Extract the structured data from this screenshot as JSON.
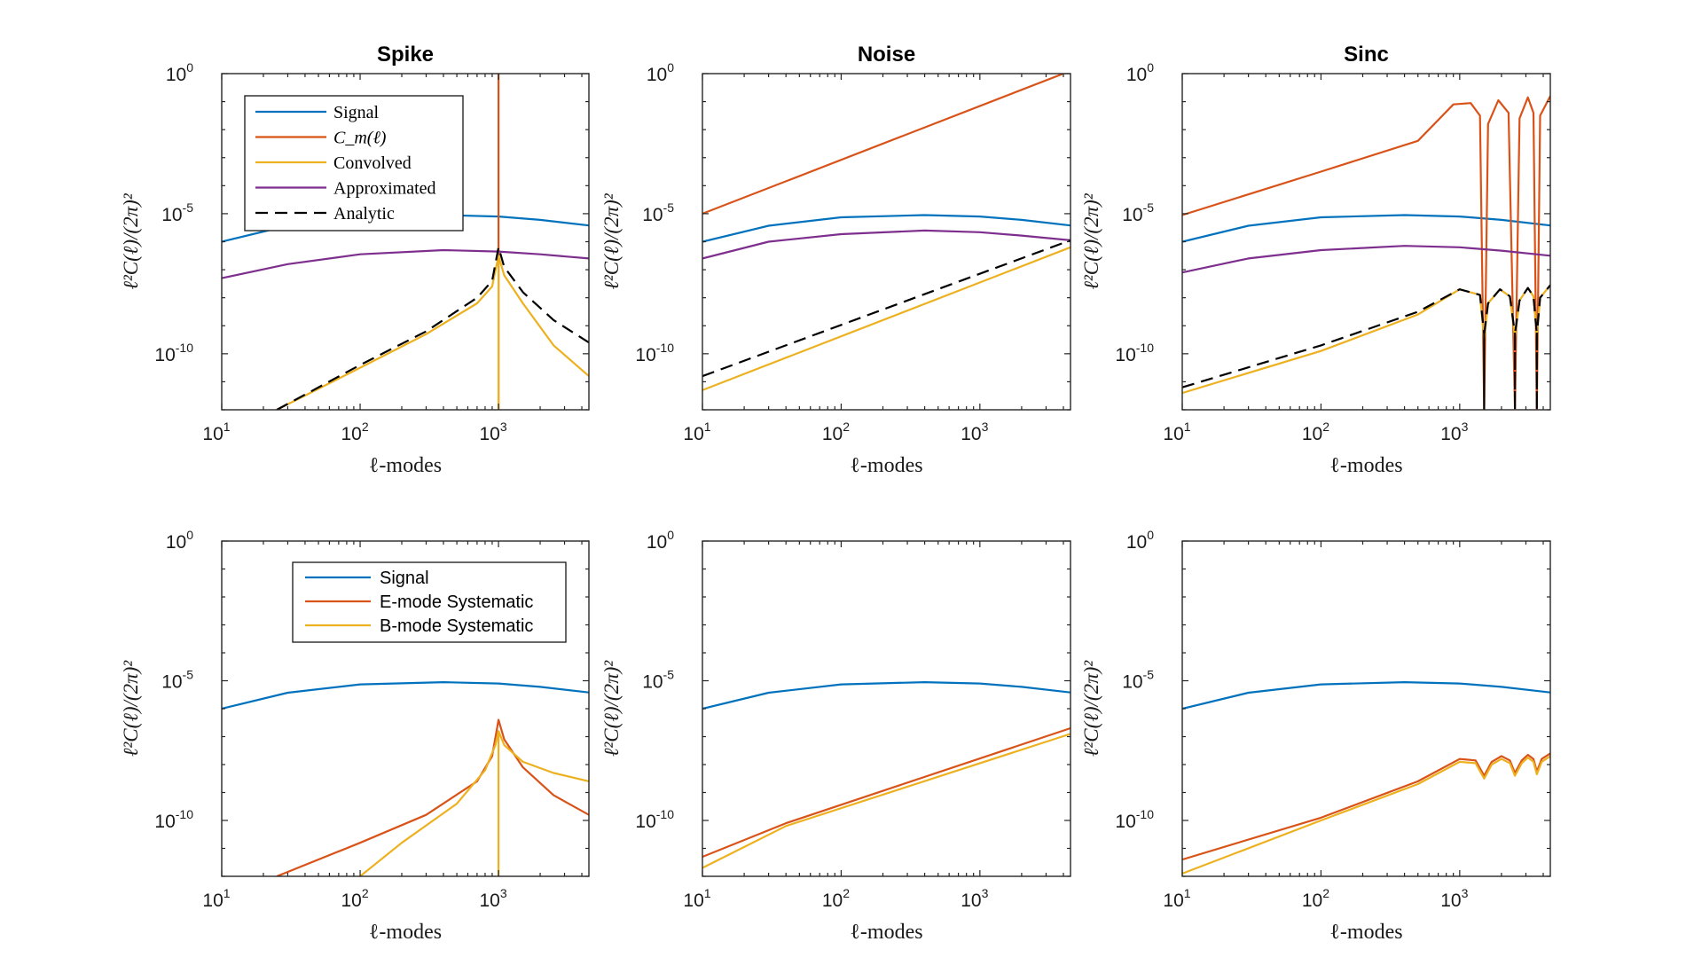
{
  "colors": {
    "signal": "#0072BD",
    "orange": "#D95319",
    "yellow": "#EDB120",
    "purple": "#7E2F8E",
    "black": "#000000"
  },
  "chart_data": [
    {
      "type": "line",
      "id": "top-spike",
      "title": "Spike",
      "xlabel": "ℓ-modes",
      "ylabel": "ℓ²C(ℓ)/(2π)²",
      "xscale": "log",
      "yscale": "log",
      "xlim": [
        10,
        4500
      ],
      "ylim": [
        1e-12,
        1
      ],
      "xticks": [
        {
          "base": "10",
          "exp": "1"
        },
        {
          "base": "10",
          "exp": "2"
        },
        {
          "base": "10",
          "exp": "3"
        }
      ],
      "yticks": [
        {
          "base": "10",
          "exp": "0",
          "value": 0
        },
        {
          "base": "10",
          "exp": "-5",
          "value": -5
        },
        {
          "base": "10",
          "exp": "-10",
          "value": -10
        }
      ],
      "legend": {
        "position": "top-left",
        "font": "serif",
        "entries": [
          {
            "text": "Signal",
            "color": "#0072BD"
          },
          {
            "text": "C_m(ℓ)",
            "color": "#D95319",
            "math": true
          },
          {
            "text": "Convolved",
            "color": "#EDB120"
          },
          {
            "text": "Approximated",
            "color": "#7E2F8E"
          },
          {
            "text": "Analytic",
            "color": "#000000",
            "dash": true
          }
        ]
      },
      "series": [
        {
          "name": "Signal",
          "color": "#0072BD",
          "x": [
            10,
            30,
            100,
            400,
            1000,
            2000,
            4500
          ],
          "y": [
            -6.0,
            -5.43,
            -5.13,
            -5.05,
            -5.1,
            -5.22,
            -5.42
          ]
        },
        {
          "name": "C_m(ℓ)",
          "color": "#D95319",
          "x": [
            1000,
            1000
          ],
          "y": [
            -12,
            0
          ]
        },
        {
          "name": "Convolved",
          "color": "#EDB120",
          "x": [
            25,
            100,
            300,
            700,
            900,
            1000,
            1000,
            1000,
            1100,
            1500,
            2500,
            4500
          ],
          "y": [
            -12.0,
            -10.5,
            -9.3,
            -8.2,
            -7.6,
            -6.5,
            -12,
            -6.5,
            -7.2,
            -8.2,
            -9.7,
            -10.8
          ]
        },
        {
          "name": "Approximated",
          "color": "#7E2F8E",
          "x": [
            10,
            30,
            100,
            400,
            1000,
            2000,
            4500
          ],
          "y": [
            -7.3,
            -6.8,
            -6.45,
            -6.3,
            -6.35,
            -6.45,
            -6.6
          ]
        },
        {
          "name": "Analytic",
          "color": "#000000",
          "dash": true,
          "x": [
            25,
            100,
            300,
            700,
            900,
            1000,
            1100,
            1500,
            2500,
            4500
          ],
          "y": [
            -12.0,
            -10.4,
            -9.2,
            -8.0,
            -7.4,
            -6.2,
            -6.9,
            -7.8,
            -8.8,
            -9.6
          ]
        }
      ]
    },
    {
      "type": "line",
      "id": "top-noise",
      "title": "Noise",
      "xlabel": "ℓ-modes",
      "ylabel": "ℓ²C(ℓ)/(2π)²",
      "xscale": "log",
      "yscale": "log",
      "xlim": [
        10,
        4500
      ],
      "ylim": [
        1e-12,
        1
      ],
      "xticks": [
        {
          "base": "10",
          "exp": "1"
        },
        {
          "base": "10",
          "exp": "2"
        },
        {
          "base": "10",
          "exp": "3"
        }
      ],
      "yticks": [
        {
          "base": "10",
          "exp": "0",
          "value": 0
        },
        {
          "base": "10",
          "exp": "-5",
          "value": -5
        },
        {
          "base": "10",
          "exp": "-10",
          "value": -10
        }
      ],
      "series": [
        {
          "name": "Signal",
          "color": "#0072BD",
          "x": [
            10,
            30,
            100,
            400,
            1000,
            2000,
            4500
          ],
          "y": [
            -6.0,
            -5.43,
            -5.13,
            -5.05,
            -5.1,
            -5.22,
            -5.42
          ]
        },
        {
          "name": "C_m(ℓ)",
          "color": "#D95319",
          "x": [
            10,
            4000
          ],
          "y": [
            -5.0,
            0
          ]
        },
        {
          "name": "Approximated",
          "color": "#7E2F8E",
          "x": [
            10,
            30,
            100,
            400,
            1000,
            2000,
            4500
          ],
          "y": [
            -6.6,
            -6.0,
            -5.73,
            -5.6,
            -5.66,
            -5.78,
            -5.95
          ]
        },
        {
          "name": "Analytic",
          "color": "#000000",
          "dash": true,
          "x": [
            10,
            4500
          ],
          "y": [
            -10.8,
            -5.95
          ]
        },
        {
          "name": "Convolved",
          "color": "#EDB120",
          "x": [
            10,
            4500
          ],
          "y": [
            -11.3,
            -6.2
          ]
        }
      ]
    },
    {
      "type": "line",
      "id": "top-sinc",
      "title": "Sinc",
      "xlabel": "ℓ-modes",
      "ylabel": "ℓ²C(ℓ)/(2π)²",
      "xscale": "log",
      "yscale": "log",
      "xlim": [
        10,
        4500
      ],
      "ylim": [
        1e-12,
        1
      ],
      "xticks": [
        {
          "base": "10",
          "exp": "1"
        },
        {
          "base": "10",
          "exp": "2"
        },
        {
          "base": "10",
          "exp": "3"
        }
      ],
      "yticks": [
        {
          "base": "10",
          "exp": "0",
          "value": 0
        },
        {
          "base": "10",
          "exp": "-5",
          "value": -5
        },
        {
          "base": "10",
          "exp": "-10",
          "value": -10
        }
      ],
      "series": [
        {
          "name": "Signal",
          "color": "#0072BD",
          "x": [
            10,
            30,
            100,
            400,
            1000,
            2000,
            4500
          ],
          "y": [
            -6.0,
            -5.43,
            -5.13,
            -5.05,
            -5.1,
            -5.22,
            -5.42
          ]
        },
        {
          "name": "C_m(ℓ)",
          "color": "#D95319",
          "x": [
            10,
            100,
            500,
            900,
            1200,
            1400,
            1500,
            1600,
            1900,
            2250,
            2500,
            2700,
            3100,
            3400,
            3600,
            3800,
            4500
          ],
          "y": [
            -5.05,
            -3.5,
            -2.4,
            -1.1,
            -1.05,
            -1.5,
            -12,
            -1.8,
            -0.95,
            -1.4,
            -12,
            -1.6,
            -0.85,
            -1.4,
            -12,
            -1.5,
            -0.8
          ]
        },
        {
          "name": "Approximated",
          "color": "#7E2F8E",
          "x": [
            10,
            30,
            100,
            400,
            1000,
            2000,
            4500
          ],
          "y": [
            -7.1,
            -6.6,
            -6.3,
            -6.15,
            -6.2,
            -6.32,
            -6.5
          ]
        },
        {
          "name": "Convolved",
          "color": "#EDB120",
          "x": [
            10,
            100,
            500,
            1000,
            1400,
            1500,
            1600,
            1950,
            2300,
            2500,
            2700,
            3100,
            3400,
            3600,
            3800,
            4500
          ],
          "y": [
            -11.4,
            -9.9,
            -8.6,
            -7.7,
            -7.9,
            -9.5,
            -8.2,
            -7.7,
            -7.95,
            -9.4,
            -8.1,
            -7.65,
            -7.95,
            -9.4,
            -8.0,
            -7.55
          ]
        },
        {
          "name": "Analytic",
          "color": "#000000",
          "dash": true,
          "x": [
            10,
            100,
            500,
            1000,
            1400,
            1500,
            1500,
            1500,
            1600,
            1950,
            2300,
            2500,
            2500,
            2500,
            2700,
            3100,
            3400,
            3600,
            3600,
            3600,
            3800,
            4500
          ],
          "y": [
            -11.2,
            -9.7,
            -8.5,
            -7.7,
            -7.9,
            -9.3,
            -12,
            -9.3,
            -8.2,
            -7.7,
            -7.95,
            -9.3,
            -12,
            -9.3,
            -8.1,
            -7.65,
            -7.95,
            -9.3,
            -12,
            -9.3,
            -8.0,
            -7.55
          ]
        }
      ]
    },
    {
      "type": "line",
      "id": "bottom-spike",
      "title": "",
      "xlabel": "ℓ-modes",
      "ylabel": "ℓ²C(ℓ)/(2π)²",
      "xscale": "log",
      "yscale": "log",
      "xlim": [
        10,
        4500
      ],
      "ylim": [
        1e-12,
        1
      ],
      "xticks": [
        {
          "base": "10",
          "exp": "1"
        },
        {
          "base": "10",
          "exp": "2"
        },
        {
          "base": "10",
          "exp": "3"
        }
      ],
      "yticks": [
        {
          "base": "10",
          "exp": "0",
          "value": 0
        },
        {
          "base": "10",
          "exp": "-5",
          "value": -5
        },
        {
          "base": "10",
          "exp": "-10",
          "value": -10
        }
      ],
      "legend": {
        "position": "top-center",
        "font": "sans",
        "entries": [
          {
            "text": "Signal",
            "color": "#0072BD"
          },
          {
            "text": "E-mode Systematic",
            "color": "#D95319"
          },
          {
            "text": "B-mode Systematic",
            "color": "#EDB120"
          }
        ]
      },
      "series": [
        {
          "name": "Signal",
          "color": "#0072BD",
          "x": [
            10,
            30,
            100,
            400,
            1000,
            2000,
            4500
          ],
          "y": [
            -6.0,
            -5.43,
            -5.13,
            -5.05,
            -5.1,
            -5.22,
            -5.42
          ]
        },
        {
          "name": "E-mode Systematic",
          "color": "#D95319",
          "x": [
            25,
            100,
            300,
            700,
            900,
            1000,
            1100,
            1500,
            2500,
            4500
          ],
          "y": [
            -12.0,
            -10.8,
            -9.8,
            -8.6,
            -7.7,
            -6.4,
            -7.1,
            -8.1,
            -9.1,
            -9.8
          ]
        },
        {
          "name": "B-mode Systematic",
          "color": "#EDB120",
          "x": [
            100,
            200,
            500,
            800,
            950,
            1000,
            1000,
            1000,
            1100,
            1500,
            2500,
            4500
          ],
          "y": [
            -12.0,
            -10.8,
            -9.4,
            -8.2,
            -7.3,
            -6.8,
            -12,
            -6.8,
            -7.3,
            -7.9,
            -8.3,
            -8.6
          ]
        }
      ]
    },
    {
      "type": "line",
      "id": "bottom-noise",
      "title": "",
      "xlabel": "ℓ-modes",
      "ylabel": "ℓ²C(ℓ)/(2π)²",
      "xscale": "log",
      "yscale": "log",
      "xlim": [
        10,
        4500
      ],
      "ylim": [
        1e-12,
        1
      ],
      "xticks": [
        {
          "base": "10",
          "exp": "1"
        },
        {
          "base": "10",
          "exp": "2"
        },
        {
          "base": "10",
          "exp": "3"
        }
      ],
      "yticks": [
        {
          "base": "10",
          "exp": "0",
          "value": 0
        },
        {
          "base": "10",
          "exp": "-5",
          "value": -5
        },
        {
          "base": "10",
          "exp": "-10",
          "value": -10
        }
      ],
      "series": [
        {
          "name": "Signal",
          "color": "#0072BD",
          "x": [
            10,
            30,
            100,
            400,
            1000,
            2000,
            4500
          ],
          "y": [
            -6.0,
            -5.43,
            -5.13,
            -5.05,
            -5.1,
            -5.22,
            -5.42
          ]
        },
        {
          "name": "E-mode Systematic",
          "color": "#D95319",
          "x": [
            10,
            40,
            4500
          ],
          "y": [
            -11.3,
            -10.1,
            -6.7
          ]
        },
        {
          "name": "B-mode Systematic",
          "color": "#EDB120",
          "x": [
            10,
            40,
            4500
          ],
          "y": [
            -11.7,
            -10.2,
            -6.9
          ]
        }
      ]
    },
    {
      "type": "line",
      "id": "bottom-sinc",
      "title": "",
      "xlabel": "ℓ-modes",
      "ylabel": "ℓ²C(ℓ)/(2π)²",
      "xscale": "log",
      "yscale": "log",
      "xlim": [
        10,
        4500
      ],
      "ylim": [
        1e-12,
        1
      ],
      "xticks": [
        {
          "base": "10",
          "exp": "1"
        },
        {
          "base": "10",
          "exp": "2"
        },
        {
          "base": "10",
          "exp": "3"
        }
      ],
      "yticks": [
        {
          "base": "10",
          "exp": "0",
          "value": 0
        },
        {
          "base": "10",
          "exp": "-5",
          "value": -5
        },
        {
          "base": "10",
          "exp": "-10",
          "value": -10
        }
      ],
      "series": [
        {
          "name": "Signal",
          "color": "#0072BD",
          "x": [
            10,
            30,
            100,
            400,
            1000,
            2000,
            4500
          ],
          "y": [
            -6.0,
            -5.43,
            -5.13,
            -5.05,
            -5.1,
            -5.22,
            -5.42
          ]
        },
        {
          "name": "E-mode Systematic",
          "color": "#D95319",
          "x": [
            10,
            100,
            500,
            1000,
            1300,
            1500,
            1700,
            2000,
            2300,
            2500,
            2800,
            3100,
            3400,
            3600,
            3900,
            4500
          ],
          "y": [
            -11.4,
            -9.9,
            -8.6,
            -7.8,
            -7.85,
            -8.4,
            -7.9,
            -7.7,
            -7.85,
            -8.3,
            -7.85,
            -7.65,
            -7.8,
            -8.25,
            -7.8,
            -7.6
          ]
        },
        {
          "name": "B-mode Systematic",
          "color": "#EDB120",
          "x": [
            10,
            100,
            500,
            1000,
            1300,
            1500,
            1700,
            2000,
            2300,
            2500,
            2800,
            3100,
            3400,
            3600,
            3900,
            4500
          ],
          "y": [
            -11.9,
            -10.0,
            -8.7,
            -7.9,
            -7.95,
            -8.5,
            -8.0,
            -7.8,
            -7.95,
            -8.4,
            -7.95,
            -7.75,
            -7.9,
            -8.35,
            -7.9,
            -7.7
          ]
        }
      ]
    }
  ]
}
